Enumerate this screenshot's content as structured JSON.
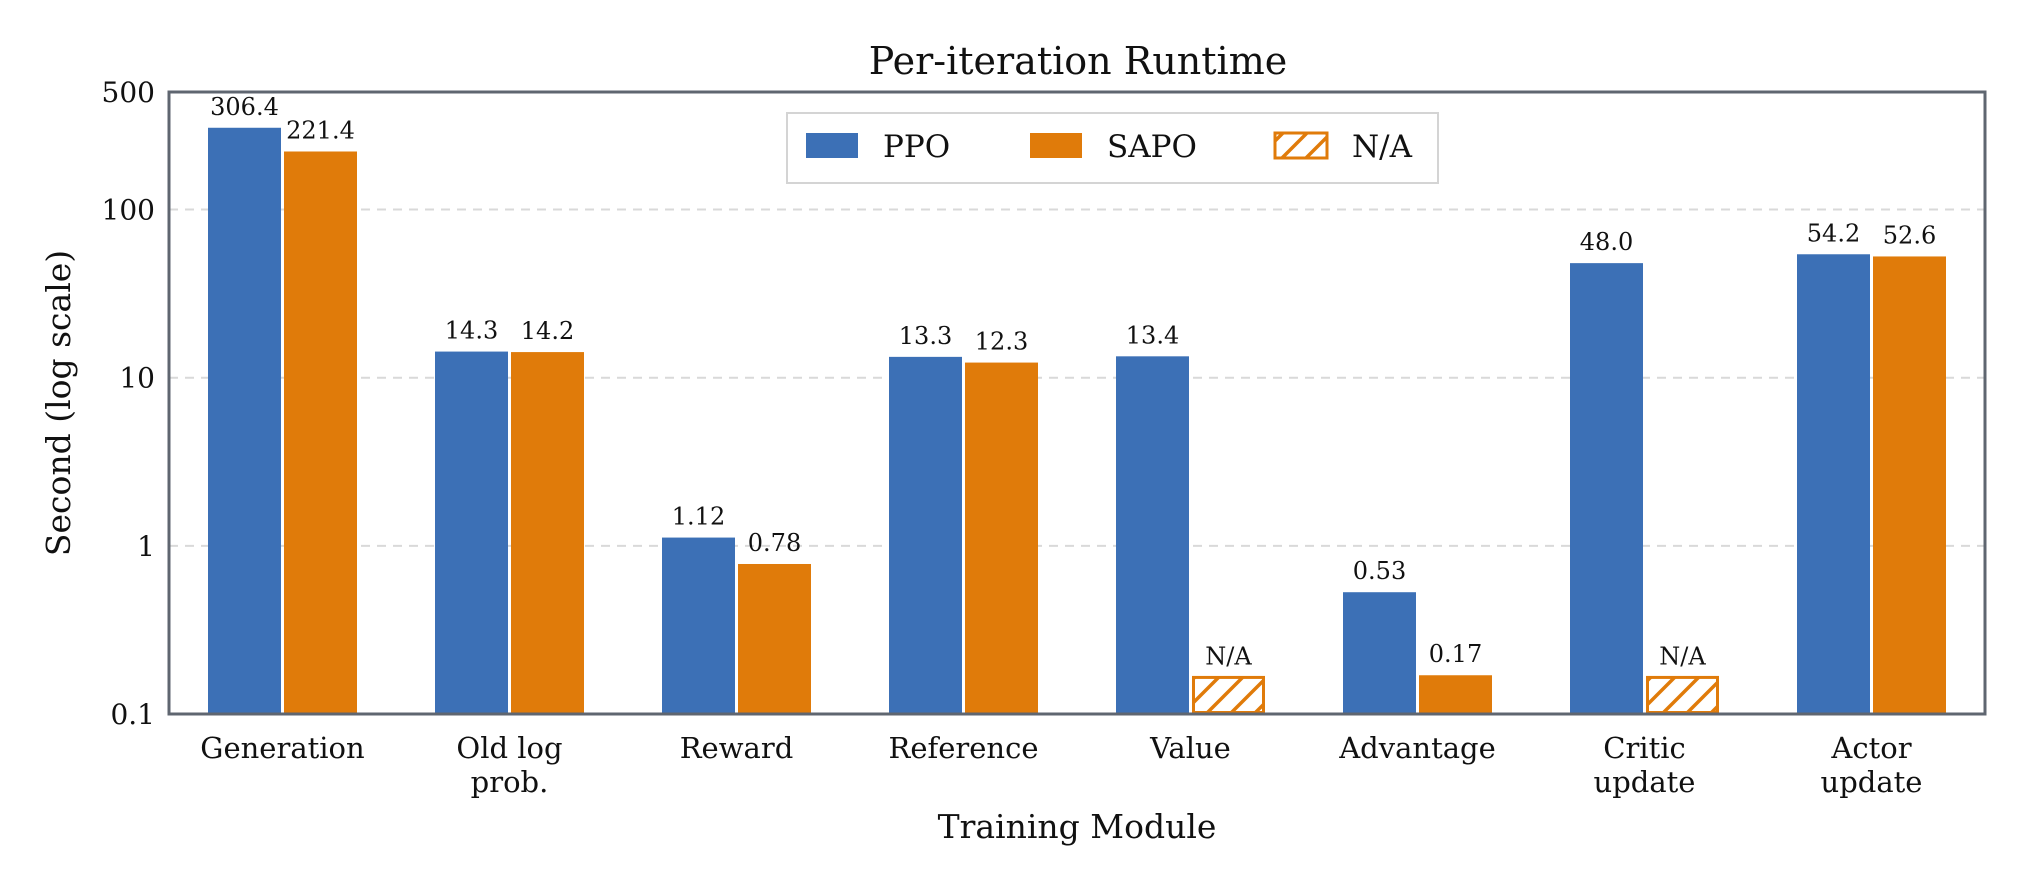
{
  "chart_data": {
    "type": "bar",
    "title": "Per-iteration Runtime",
    "xlabel": "Training Module",
    "ylabel": "Second (log scale)",
    "yscale": "log",
    "ylim": [
      0.1,
      500
    ],
    "yticks": [
      0.1,
      1,
      10,
      100,
      500
    ],
    "ytick_labels": [
      "0.1",
      "1",
      "10",
      "100",
      "500"
    ],
    "grid": "horizontal dashed",
    "legend_position": "top-center",
    "categories": [
      [
        "Generation"
      ],
      [
        "Old log",
        "prob."
      ],
      [
        "Reward"
      ],
      [
        "Reference"
      ],
      [
        "Value"
      ],
      [
        "Advantage"
      ],
      [
        "Critic",
        "update"
      ],
      [
        "Actor",
        "update"
      ]
    ],
    "series": [
      {
        "name": "PPO",
        "color": "#3c70b6",
        "values": [
          306.4,
          14.3,
          1.12,
          13.3,
          13.4,
          0.53,
          48.0,
          54.2
        ],
        "labels": [
          "306.4",
          "14.3",
          "1.12",
          "13.3",
          "13.4",
          "0.53",
          "48.0",
          "54.2"
        ]
      },
      {
        "name": "SAPO",
        "color": "#e07b0a",
        "values": [
          221.4,
          14.2,
          0.78,
          12.3,
          null,
          0.17,
          null,
          52.6
        ],
        "labels": [
          "221.4",
          "14.2",
          "0.78",
          "12.3",
          "N/A",
          "0.17",
          "N/A",
          "52.6"
        ]
      }
    ],
    "na": {
      "name": "N/A",
      "color": "#e07b0a",
      "label": "N/A",
      "display_value": 0.165
    }
  }
}
